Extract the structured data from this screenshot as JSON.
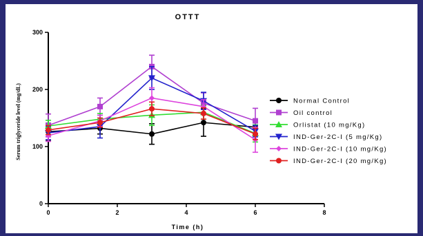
{
  "colors": {
    "background": "#2a2a73",
    "panel": "#ffffff"
  },
  "chart_data": {
    "type": "line",
    "title": "OTTT",
    "xlabel": "Time (h)",
    "ylabel": "Serum triglyceride level (mg/dL)",
    "xlim": [
      0,
      8
    ],
    "ylim": [
      0,
      300
    ],
    "xticks": [
      0,
      2,
      4,
      6,
      8
    ],
    "yticks": [
      0,
      100,
      200,
      300
    ],
    "grid": false,
    "legend_position": "right",
    "x": [
      0,
      1.5,
      3,
      4.5,
      6
    ],
    "series": [
      {
        "name": "Normal Control",
        "color": "#000000",
        "marker": "circle",
        "values": [
          126,
          132,
          122,
          142,
          134
        ],
        "errors": [
          15,
          10,
          18,
          24,
          12
        ]
      },
      {
        "name": "Oil control",
        "color": "#b040d0",
        "marker": "square",
        "values": [
          137,
          170,
          240,
          176,
          145
        ],
        "errors": [
          20,
          15,
          20,
          18,
          22
        ]
      },
      {
        "name": "Orlistat (10 mg/Kg)",
        "color": "#33dd33",
        "marker": "triangle-up",
        "values": [
          136,
          148,
          155,
          160,
          123
        ],
        "errors": [
          10,
          10,
          18,
          12,
          15
        ]
      },
      {
        "name": "IND-Ger-2C-I (5 mg/Kg)",
        "color": "#2222cc",
        "marker": "triangle-down",
        "values": [
          124,
          135,
          220,
          180,
          127
        ],
        "errors": [
          12,
          20,
          20,
          15,
          10
        ]
      },
      {
        "name": "IND-Ger-2C-I (10 mg/Kg)",
        "color": "#dd44dd",
        "marker": "diamond",
        "values": [
          119,
          145,
          185,
          170,
          112
        ],
        "errors": [
          10,
          10,
          18,
          12,
          22
        ]
      },
      {
        "name": "IND-Ger-2C-I (20 mg/Kg)",
        "color": "#e02020",
        "marker": "circle",
        "values": [
          129,
          142,
          166,
          158,
          122
        ],
        "errors": [
          8,
          8,
          12,
          10,
          10
        ]
      }
    ]
  }
}
